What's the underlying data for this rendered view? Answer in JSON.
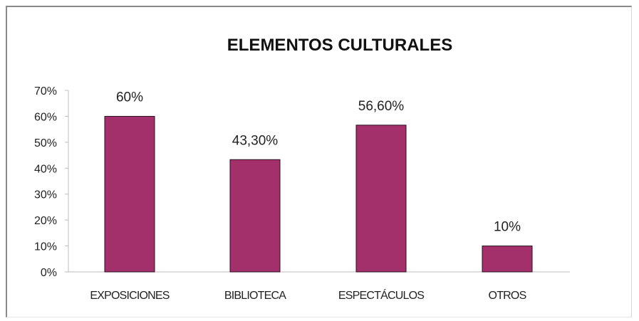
{
  "chart_data": {
    "type": "bar",
    "title": "ELEMENTOS CULTURALES",
    "xlabel": "",
    "ylabel": "",
    "categories": [
      "EXPOSICIONES",
      "BIBLIOTECA",
      "ESPECTÁCULOS",
      "OTROS"
    ],
    "values": [
      60,
      43.3,
      56.6,
      10
    ],
    "data_labels": [
      "60%",
      "43,30%",
      "56,60%",
      "10%"
    ],
    "ylim": [
      0,
      70
    ],
    "yticks": [
      0,
      10,
      20,
      30,
      40,
      50,
      60,
      70
    ],
    "ytick_labels": [
      "0%",
      "10%",
      "20%",
      "30%",
      "40%",
      "50%",
      "60%",
      "70%"
    ],
    "grid": false,
    "legend": "none",
    "bar_color": "#a3306b",
    "bar_edge_color": "#2a1020"
  }
}
